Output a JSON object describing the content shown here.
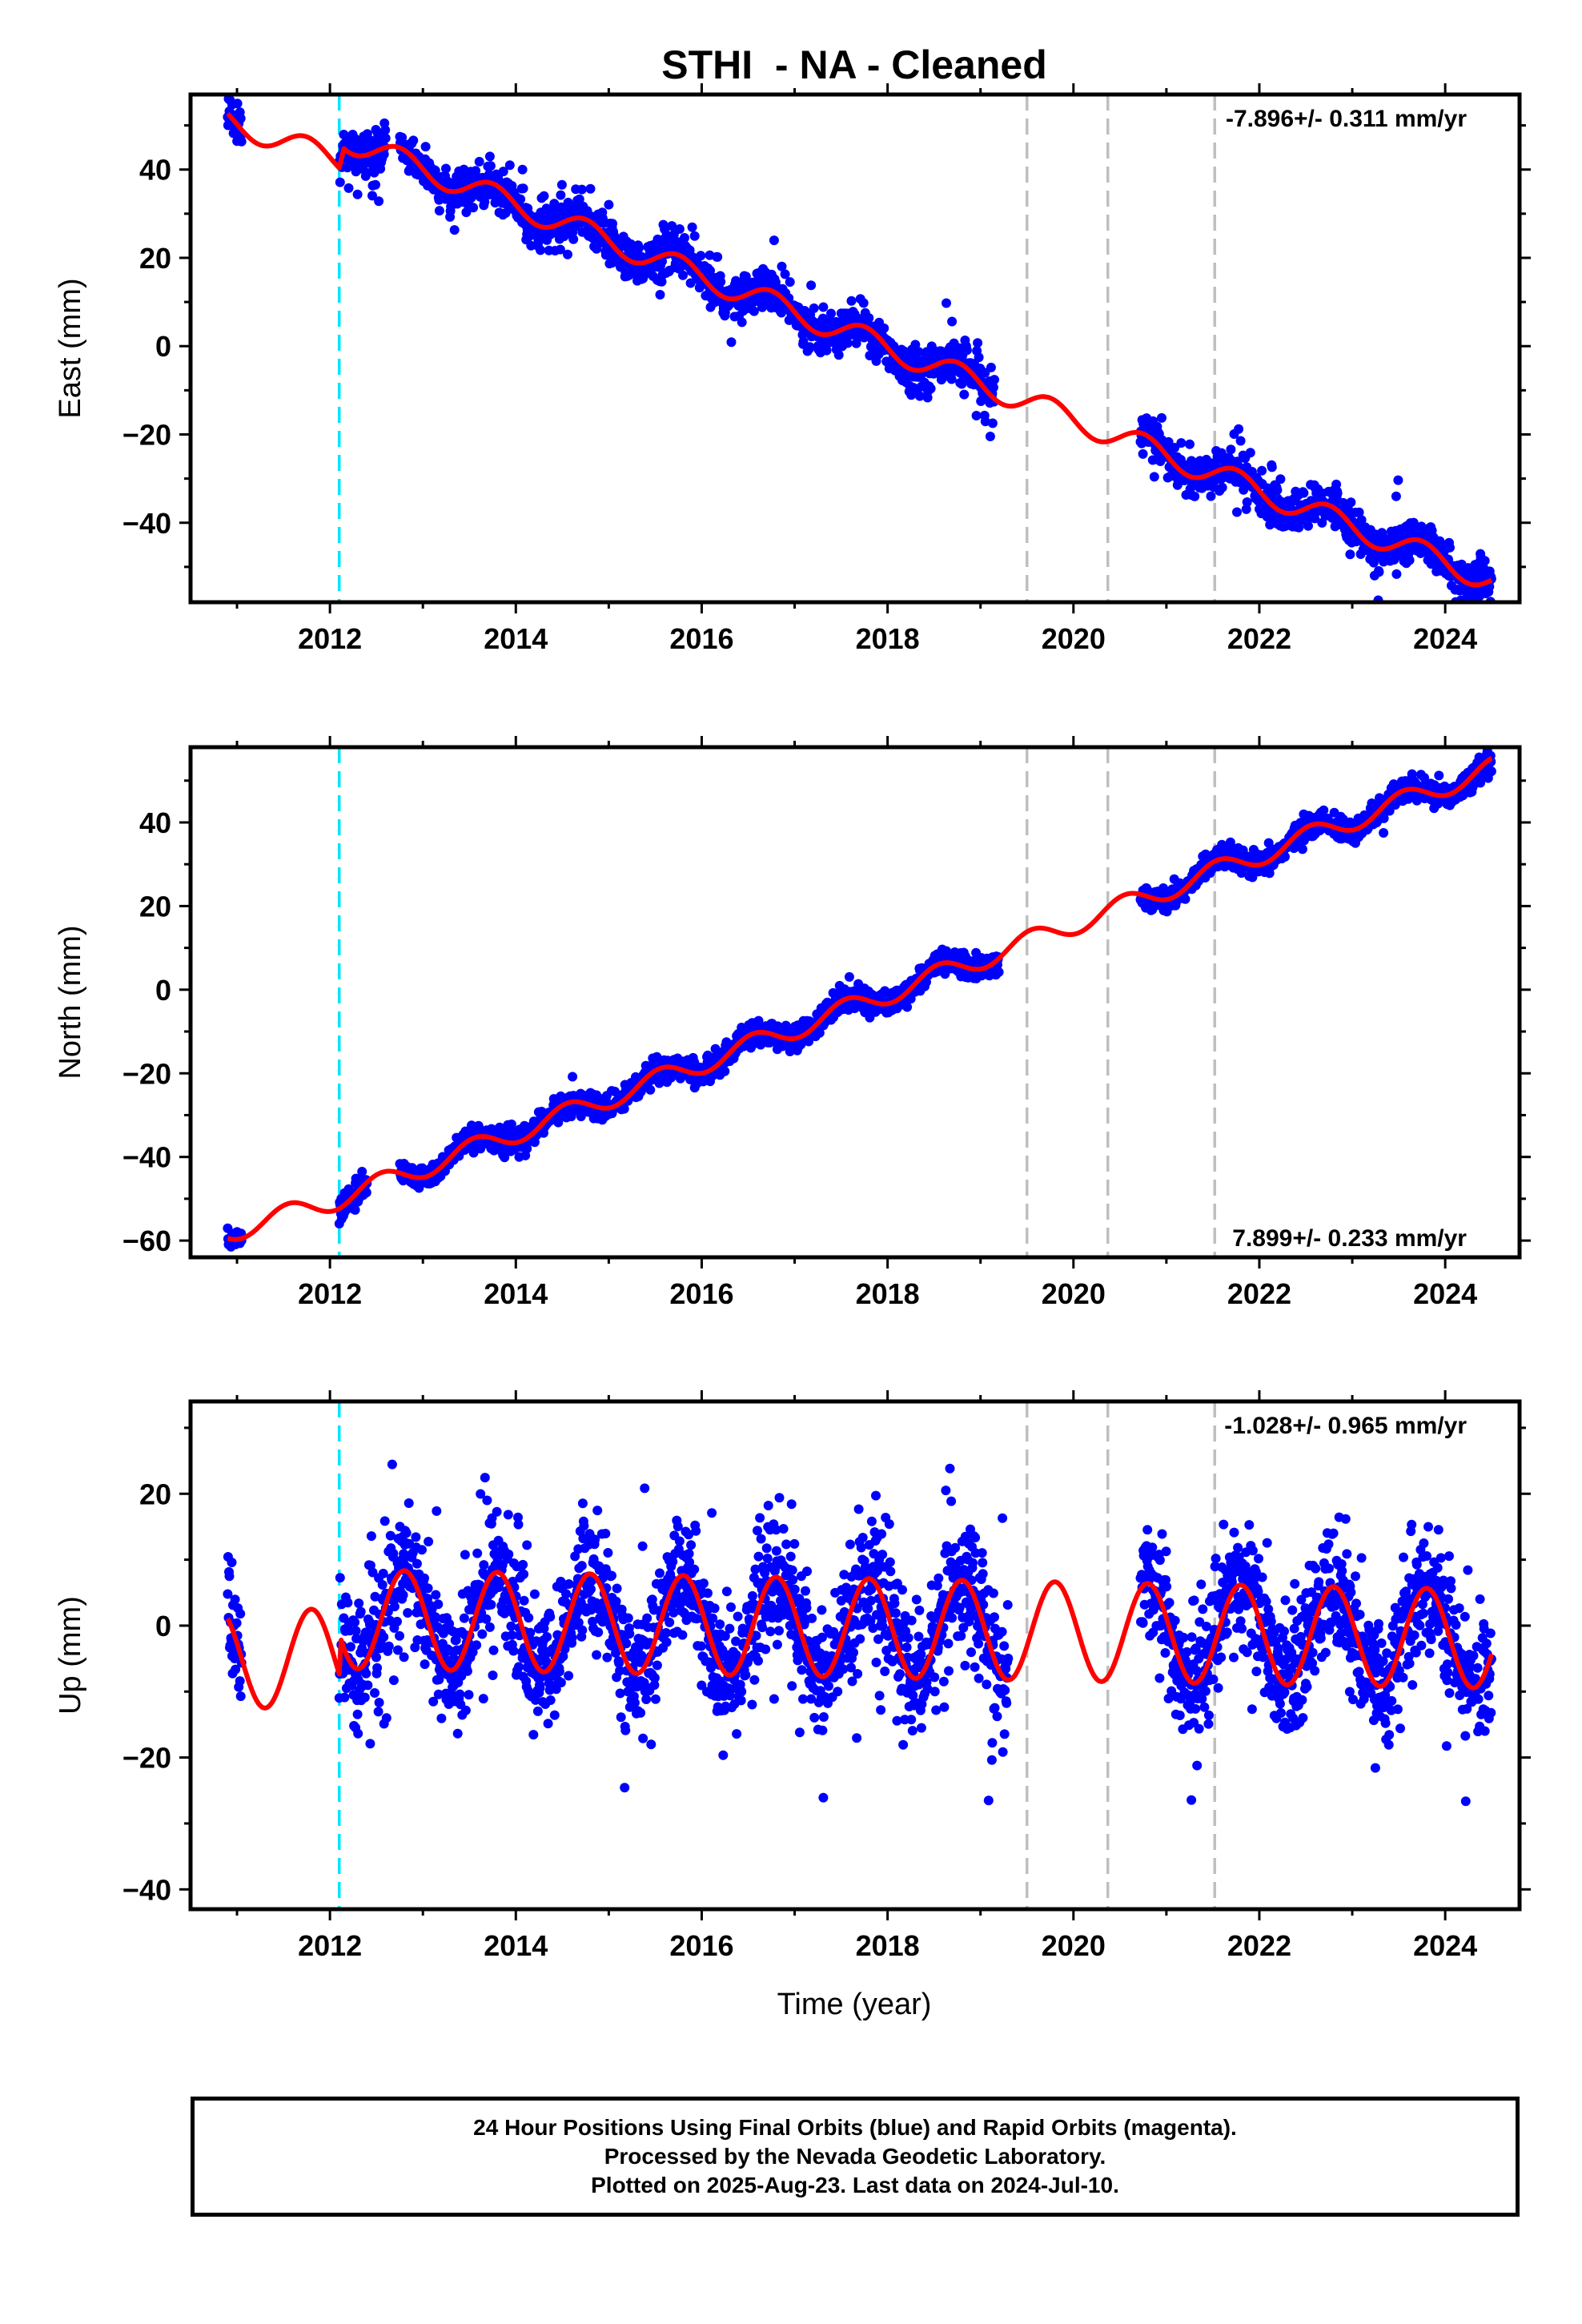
{
  "title": "STHI  - NA - Cleaned",
  "xlabel": "Time (year)",
  "footer": [
    "24 Hour Positions Using Final Orbits (blue) and Rapid Orbits (magenta).",
    "Processed by the Nevada Geodetic Laboratory.",
    "Plotted on 2025-Aug-23. Last data on 2024-Jul-10."
  ],
  "colors": {
    "data": "#0000ff",
    "model": "#ff0000",
    "antenna_change": "#00e5ff",
    "other_event": "#bfbfbf"
  },
  "chart_data": [
    {
      "type": "scatter",
      "ylabel": "East (mm)",
      "xlim": [
        2010.5,
        2024.8
      ],
      "ylim": [
        -58,
        57
      ],
      "xticks": [
        2012,
        2014,
        2016,
        2018,
        2020,
        2022,
        2024
      ],
      "yticks": [
        -40,
        -20,
        0,
        20,
        40
      ],
      "rate_label": "-7.896+/- 0.311 mm/yr",
      "rate_position": "top-right",
      "events_cyan": [
        2012.1
      ],
      "events_gray": [
        2019.5,
        2020.37,
        2021.52
      ],
      "gaps": [
        [
          2011.0,
          2012.1
        ],
        [
          2012.6,
          2012.75
        ],
        [
          2019.15,
          2020.72
        ]
      ],
      "model": {
        "trend": [
          [
            2010.9,
            51
          ],
          [
            2012.1,
            42
          ],
          [
            2012.15,
            47
          ],
          [
            2024.5,
            -53
          ]
        ],
        "amp": 2.8,
        "peak_phase": 0.75
      },
      "scatter": {
        "noise": 2.2,
        "outlier_rate": 0.04,
        "outlier_spread": 10
      },
      "series": [
        {
          "name": "24 Hour Positions (blue)",
          "role": "data"
        },
        {
          "name": "Model",
          "role": "fit"
        }
      ]
    },
    {
      "type": "scatter",
      "ylabel": "North (mm)",
      "xlim": [
        2010.5,
        2024.8
      ],
      "ylim": [
        -64,
        58
      ],
      "xticks": [
        2012,
        2014,
        2016,
        2018,
        2020,
        2022,
        2024
      ],
      "yticks": [
        -60,
        -40,
        -20,
        0,
        20,
        40
      ],
      "rate_label": "7.899+/- 0.233 mm/yr",
      "rate_position": "bottom-right",
      "events_cyan": [
        2012.1
      ],
      "events_gray": [
        2019.5,
        2020.37,
        2021.52
      ],
      "gaps": [
        [
          2011.0,
          2012.1
        ],
        [
          2012.4,
          2012.75
        ],
        [
          2019.2,
          2020.72
        ]
      ],
      "model": {
        "trend": [
          [
            2010.9,
            -58
          ],
          [
            2012.1,
            -50
          ],
          [
            2024.5,
            53
          ]
        ],
        "amp": 2.5,
        "peak_phase": 0.55
      },
      "scatter": {
        "noise": 1.4,
        "outlier_rate": 0.02,
        "outlier_spread": 5
      },
      "series": [
        {
          "name": "24 Hour Positions (blue)",
          "role": "data"
        },
        {
          "name": "Model",
          "role": "fit"
        }
      ]
    },
    {
      "type": "scatter",
      "ylabel": "Up (mm)",
      "xlim": [
        2010.5,
        2024.8
      ],
      "ylim": [
        -43,
        34
      ],
      "xticks": [
        2012,
        2014,
        2016,
        2018,
        2020,
        2022,
        2024
      ],
      "yticks": [
        -40,
        -20,
        0,
        20
      ],
      "rate_label": "-1.028+/- 0.965 mm/yr",
      "rate_position": "top-right",
      "events_cyan": [
        2012.1
      ],
      "events_gray": [
        2019.5,
        2020.37,
        2021.52
      ],
      "gaps": [
        [
          2011.0,
          2012.1
        ],
        [
          2019.3,
          2020.72
        ]
      ],
      "model": {
        "trend": [
          [
            2010.9,
            -5
          ],
          [
            2012.1,
            -5
          ],
          [
            2012.12,
            1
          ],
          [
            2024.5,
            -2
          ]
        ],
        "amp": 7.5,
        "peak_phase": 0.8
      },
      "scatter": {
        "noise": 4.5,
        "outlier_rate": 0.05,
        "outlier_spread": 16
      },
      "series": [
        {
          "name": "24 Hour Positions (blue)",
          "role": "data"
        },
        {
          "name": "Model",
          "role": "fit"
        }
      ]
    }
  ]
}
